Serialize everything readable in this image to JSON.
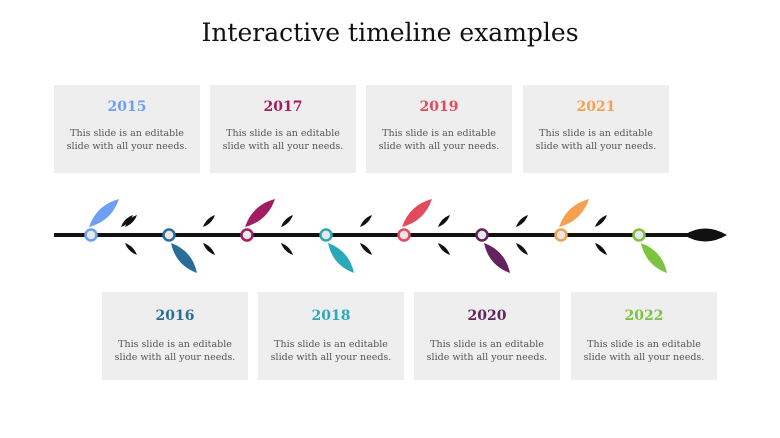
{
  "title": "Interactive timeline examples",
  "colors": {
    "line": "#111111",
    "card_bg": "#eeeeef",
    "dark_leaf": "#111111"
  },
  "milestones": [
    {
      "year": "2015",
      "text": "This slide is an editable slide with all your needs.",
      "color": "#6da0f4",
      "position": "top"
    },
    {
      "year": "2016",
      "text": "This slide is an editable slide with all your needs.",
      "color": "#2a6e98",
      "position": "bottom"
    },
    {
      "year": "2017",
      "text": "This slide is an editable slide with all your needs.",
      "color": "#a21d5f",
      "position": "top"
    },
    {
      "year": "2018",
      "text": "This slide is an editable slide with all your needs.",
      "color": "#2aaab8",
      "position": "bottom"
    },
    {
      "year": "2019",
      "text": "This slide is an editable slide with all your needs.",
      "color": "#e44a5e",
      "position": "top"
    },
    {
      "year": "2020",
      "text": "This slide is an editable slide with all your needs.",
      "color": "#63235f",
      "position": "bottom"
    },
    {
      "year": "2021",
      "text": "This slide is an editable slide with all your needs.",
      "color": "#f5a04f",
      "position": "top"
    },
    {
      "year": "2022",
      "text": "This slide is an editable slide with all your needs.",
      "color": "#7cc340",
      "position": "bottom"
    }
  ]
}
